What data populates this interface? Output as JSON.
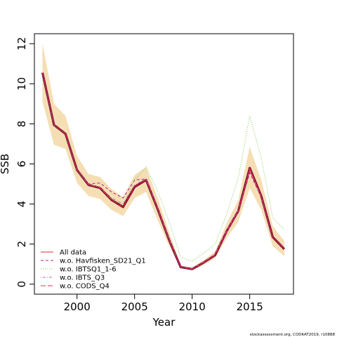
{
  "chart_data": {
    "type": "line",
    "xlabel": "Year",
    "ylabel": "SSB",
    "xlim": [
      1996.3,
      2018.8
    ],
    "ylim": [
      -0.5,
      12.5
    ],
    "x_ticks": [
      2000,
      2005,
      2010,
      2015
    ],
    "y_ticks": [
      0,
      2,
      4,
      6,
      8,
      10,
      12
    ],
    "grid": false,
    "legend_position": "bottom-left",
    "colors": {
      "band": "#F5DEB3",
      "all_data": "#D03030",
      "havfisken": "#B0208A",
      "ibtsq1": "#7CC84A",
      "ibts_q3": "#D060A0",
      "cods_q4": "#E83040",
      "thick_line": "#5A0028"
    },
    "x": [
      1997,
      1998,
      1999,
      2000,
      2001,
      2002,
      2003,
      2004,
      2005,
      2006,
      2007,
      2008,
      2009,
      2010,
      2011,
      2012,
      2013,
      2014,
      2015,
      2016,
      2017,
      2018
    ],
    "band": {
      "lower": [
        9.1,
        6.95,
        6.75,
        5.05,
        4.4,
        4.25,
        3.7,
        3.4,
        4.3,
        4.6,
        3.2,
        1.9,
        0.8,
        0.7,
        0.95,
        1.3,
        2.3,
        3.1,
        4.8,
        3.7,
        1.9,
        1.4
      ],
      "upper": [
        12.0,
        9.0,
        8.4,
        6.4,
        5.5,
        5.35,
        4.75,
        4.35,
        5.45,
        5.85,
        4.3,
        2.6,
        0.95,
        0.82,
        1.2,
        1.65,
        3.05,
        4.2,
        6.85,
        5.2,
        2.9,
        2.15
      ]
    },
    "thick_series": [
      10.55,
      7.95,
      7.5,
      5.7,
      4.95,
      4.8,
      4.2,
      3.85,
      4.85,
      5.2,
      3.75,
      2.2,
      0.85,
      0.75,
      1.08,
      1.45,
      2.65,
      3.65,
      5.8,
      4.4,
      2.35,
      1.75
    ],
    "series": [
      {
        "name": "All data",
        "style": "solid",
        "values": [
          10.55,
          7.95,
          7.5,
          5.7,
          4.95,
          4.8,
          4.2,
          3.85,
          4.85,
          5.2,
          3.75,
          2.2,
          0.85,
          0.75,
          1.08,
          1.45,
          2.65,
          3.65,
          5.8,
          4.4,
          2.35,
          1.75
        ]
      },
      {
        "name": "w.o. Havfisken_SD21_Q1",
        "style": "dashed",
        "values": [
          10.55,
          7.95,
          7.5,
          5.7,
          5.0,
          5.05,
          4.6,
          4.3,
          5.2,
          5.25,
          3.75,
          2.2,
          0.85,
          0.75,
          1.08,
          1.45,
          2.6,
          3.6,
          5.55,
          4.35,
          2.35,
          1.75
        ]
      },
      {
        "name": "w.o. IBTSQ1_1-6",
        "style": "dotted",
        "values": [
          10.55,
          7.95,
          7.5,
          5.7,
          4.95,
          4.85,
          4.25,
          3.95,
          5.2,
          5.85,
          4.65,
          3.1,
          1.35,
          1.15,
          1.55,
          2.0,
          3.5,
          5.3,
          8.4,
          6.3,
          3.3,
          2.75
        ]
      },
      {
        "name": "w.o. IBTS_Q3",
        "style": "dashdot",
        "values": [
          10.55,
          7.95,
          7.5,
          5.7,
          4.95,
          4.85,
          4.3,
          4.0,
          4.95,
          5.25,
          3.8,
          2.25,
          0.87,
          0.77,
          1.1,
          1.5,
          2.7,
          3.7,
          5.7,
          4.35,
          2.35,
          1.75
        ]
      },
      {
        "name": "w.o. CODS_Q4",
        "style": "longdash",
        "values": [
          10.55,
          7.95,
          7.5,
          5.7,
          4.95,
          4.8,
          4.2,
          3.85,
          4.85,
          5.2,
          3.75,
          2.2,
          0.85,
          0.75,
          1.08,
          1.45,
          2.65,
          3.65,
          5.75,
          4.4,
          2.35,
          1.75
        ]
      }
    ]
  },
  "footer": "stockassessment.org, CODKAT2019, r10888"
}
